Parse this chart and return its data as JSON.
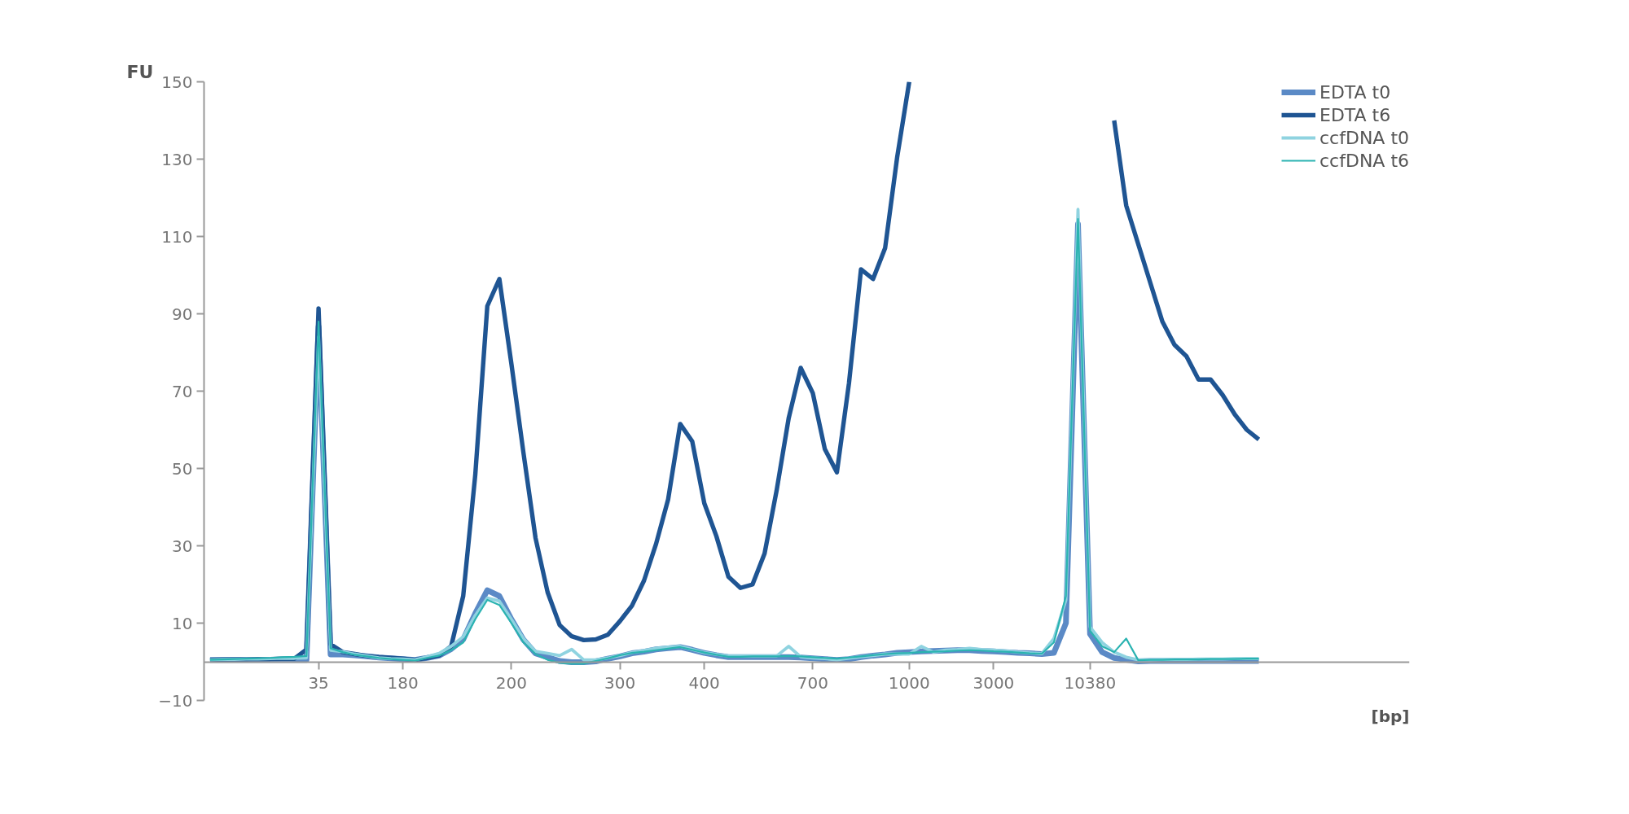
{
  "chart_data": {
    "type": "line",
    "xlabel": "[bp]",
    "ylabel": "FU",
    "legend": "top right",
    "ylim": [
      -10,
      150
    ],
    "yticks": [
      -10,
      10,
      30,
      50,
      70,
      90,
      110,
      130,
      150
    ],
    "categories": [
      null,
      null,
      null,
      null,
      null,
      null,
      null,
      null,
      null,
      "35",
      null,
      null,
      null,
      null,
      null,
      null,
      "180",
      null,
      null,
      null,
      null,
      null,
      null,
      null,
      null,
      "200",
      null,
      null,
      null,
      null,
      null,
      null,
      null,
      null,
      "300",
      null,
      null,
      null,
      null,
      null,
      null,
      "400",
      null,
      null,
      null,
      null,
      null,
      null,
      null,
      null,
      "700",
      null,
      null,
      null,
      null,
      null,
      null,
      null,
      "1000",
      null,
      null,
      null,
      null,
      null,
      null,
      "3000",
      null,
      null,
      null,
      null,
      null,
      null,
      null,
      "10380",
      null,
      null,
      null,
      null,
      null,
      null,
      null,
      null,
      null,
      null,
      null,
      null,
      null,
      null,
      null,
      null,
      null,
      null,
      null,
      null,
      null,
      null,
      null,
      null,
      null,
      null
    ],
    "series": [
      {
        "name": "EDTA t0",
        "color": "#5b8ac6",
        "values": [
          0.5,
          0.5,
          0.5,
          0.5,
          0.5,
          0.5,
          0.5,
          0.5,
          0.5,
          86.7,
          1.9,
          1.9,
          1.7,
          1.4,
          1.1,
          0.9,
          0.7,
          0.5,
          1.0,
          1.6,
          3.3,
          5.8,
          12.5,
          18.5,
          17,
          11,
          5.7,
          2.2,
          1.2,
          0.2,
          -0.1,
          -0.1,
          0.1,
          0.8,
          1.4,
          2.2,
          2.6,
          3.2,
          3.5,
          3.8,
          3.1,
          2.3,
          1.7,
          1.2,
          1.2,
          1.2,
          1.2,
          1.2,
          1.2,
          1.1,
          0.9,
          0.7,
          0.5,
          0.7,
          1.2,
          1.6,
          1.9,
          2.3,
          2.5,
          2.7,
          2.8,
          2.9,
          3.0,
          3.0,
          2.8,
          2.7,
          2.5,
          2.3,
          2.2,
          2.0,
          2.3,
          10,
          113.2,
          7.2,
          2.5,
          1.0,
          0.5,
          0.1,
          0.2,
          0.2,
          0.2,
          0.2,
          0.2,
          0.2,
          0.2,
          0.2,
          0.2,
          0.2,
          null,
          null,
          null,
          null,
          null,
          null,
          null,
          null,
          null,
          null,
          null,
          null
        ]
      },
      {
        "name": "EDTA t6",
        "color": "#1f5593",
        "values": [
          0.5,
          0.6,
          0.6,
          0.6,
          0.7,
          0.7,
          0.8,
          0.8,
          3.2,
          91.4,
          4.5,
          2.5,
          2.0,
          1.5,
          1.2,
          1.0,
          0.8,
          0.5,
          1.0,
          1.6,
          4.0,
          17,
          48.3,
          92,
          99,
          77,
          54,
          32,
          18,
          9.5,
          6.6,
          5.6,
          5.8,
          7.0,
          10.5,
          14.5,
          21,
          30.5,
          42,
          61.5,
          57,
          41,
          32.5,
          22,
          19.1,
          20,
          28,
          44.3,
          63,
          76,
          69.5,
          55,
          49,
          72,
          101.5,
          99,
          107,
          130.5,
          150,
          null,
          null,
          null,
          null,
          null,
          null,
          null,
          null,
          null,
          null,
          null,
          null,
          null,
          null,
          null,
          null,
          140,
          118,
          108,
          98,
          88,
          82,
          79,
          73,
          73,
          69,
          64,
          60,
          57.5,
          null,
          null,
          null,
          null,
          null,
          null,
          null,
          null,
          null,
          null,
          null,
          null
        ]
      },
      {
        "name": "ccfDNA t0",
        "color": "#8fd3e0",
        "values": [
          0.5,
          0.6,
          0.6,
          0.7,
          0.7,
          0.8,
          0.9,
          0.9,
          1.0,
          84,
          3.0,
          2.6,
          2.0,
          1.5,
          1.0,
          0.8,
          0.7,
          0.5,
          1.3,
          2.2,
          4,
          6.5,
          12,
          16.5,
          15.7,
          11,
          6,
          2.7,
          2.2,
          1.6,
          3.2,
          0.5,
          0.5,
          1.0,
          1.6,
          2.4,
          2.9,
          3.5,
          3.8,
          4.0,
          3.2,
          2.4,
          1.9,
          1.5,
          1.5,
          1.5,
          1.5,
          1.5,
          4.0,
          1.3,
          1.0,
          0.8,
          0.5,
          0.9,
          1.3,
          1.6,
          2.0,
          2.0,
          2.0,
          4.0,
          2.5,
          3.0,
          3.2,
          3.5,
          3.2,
          3.0,
          2.8,
          2.5,
          2.3,
          2.1,
          6,
          16,
          117,
          9,
          5,
          2.5,
          1.2,
          0.5,
          0.5,
          0.6,
          0.6,
          0.6,
          0.7,
          0.7,
          0.7,
          0.8,
          0.8,
          0.8,
          null,
          null,
          null,
          null,
          null,
          null,
          null,
          null,
          null,
          null,
          null,
          null
        ]
      },
      {
        "name": "ccfDNA t6",
        "color": "#2ab3b1",
        "values": [
          0.5,
          0.6,
          0.7,
          0.8,
          0.9,
          1.0,
          1.2,
          1.3,
          1.5,
          88,
          3.5,
          2.5,
          1.8,
          1.4,
          1.0,
          0.7,
          0.5,
          0.3,
          1.0,
          1.6,
          3.0,
          5.0,
          11,
          16,
          14.7,
          10,
          5,
          2,
          0.5,
          -0.3,
          -0.5,
          -0.5,
          0.2,
          0.9,
          1.7,
          2.3,
          2.6,
          3.0,
          3.4,
          3.8,
          3.1,
          2.4,
          1.8,
          1.3,
          1.3,
          1.4,
          1.4,
          1.4,
          1.5,
          1.4,
          1.2,
          1.0,
          0.8,
          1.1,
          1.4,
          1.7,
          2.0,
          2.2,
          2.3,
          2.5,
          2.6,
          2.7,
          2.9,
          3.0,
          2.9,
          2.7,
          2.6,
          2.4,
          2.2,
          2.1,
          5,
          17,
          114.5,
          8,
          4,
          2.5,
          6.0,
          0.4,
          0.5,
          0.5,
          0.6,
          0.6,
          0.6,
          0.7,
          0.7,
          0.7,
          0.8,
          0.8,
          null,
          null,
          null,
          null,
          null,
          null,
          null,
          null,
          null,
          null,
          null,
          null
        ]
      }
    ]
  }
}
